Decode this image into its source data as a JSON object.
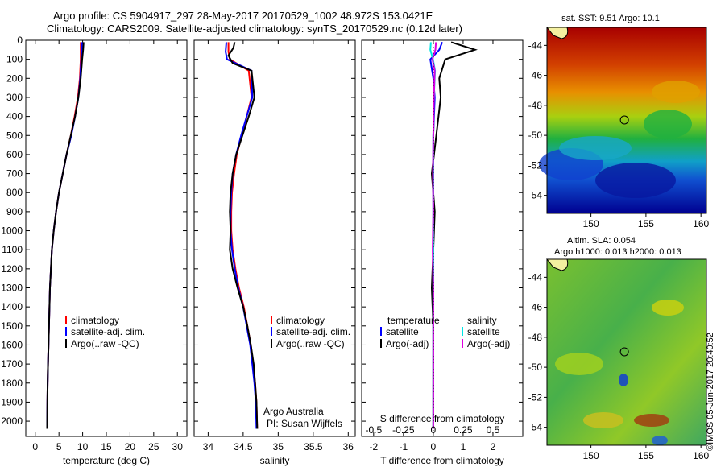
{
  "header": {
    "line1": "Argo profile: CS 5904917_297 28-May-2017 20170529_1002 48.972S 153.0421E",
    "line2": "Climatology: CARS2009. Satellite-adjusted climatology: synTS_20170529.nc (0.12d later)"
  },
  "colors": {
    "climatology": "#ff0000",
    "satellite": "#0000ff",
    "argo": "#000000",
    "sal_satellite": "#00e5e5",
    "sal_argo": "#e000e0"
  },
  "chart_data": [
    {
      "type": "line",
      "id": "temperature",
      "xlabel": "temperature (deg C)",
      "ylabel": "",
      "xlim": [
        -2,
        32
      ],
      "ylim": [
        2080,
        0
      ],
      "xticks": [
        0,
        5,
        10,
        15,
        20,
        25,
        30
      ],
      "yticks": [
        0,
        100,
        200,
        300,
        400,
        500,
        600,
        700,
        800,
        900,
        1000,
        1100,
        1200,
        1300,
        1400,
        1500,
        1600,
        1700,
        1800,
        1900,
        2000
      ],
      "legend": [
        "climatology",
        "satellite-adj. clim.",
        "Argo(..raw -QC)"
      ],
      "series": [
        {
          "name": "climatology",
          "color": "#ff0000",
          "x": [
            9.6,
            9.6,
            9.6,
            9.4,
            9.0,
            8.3,
            7.5,
            6.6,
            5.8,
            5.0,
            4.4,
            3.9,
            3.5,
            3.3,
            3.1,
            3.0,
            2.9,
            2.8,
            2.7,
            2.6,
            2.55,
            2.5
          ],
          "y": [
            10,
            50,
            100,
            200,
            300,
            400,
            500,
            600,
            700,
            800,
            900,
            1000,
            1100,
            1200,
            1300,
            1400,
            1500,
            1600,
            1700,
            1800,
            1900,
            2040
          ]
        },
        {
          "name": "satellite-adj. clim.",
          "color": "#0000ff",
          "x": [
            9.9,
            9.8,
            9.7,
            9.5,
            9.1,
            8.4,
            7.6,
            6.6,
            5.8,
            5.0,
            4.4,
            3.9,
            3.5,
            3.3,
            3.1,
            3.0,
            2.9,
            2.8,
            2.7,
            2.6,
            2.55,
            2.5
          ],
          "y": [
            10,
            50,
            100,
            200,
            300,
            400,
            500,
            600,
            700,
            800,
            900,
            1000,
            1100,
            1200,
            1300,
            1400,
            1500,
            1600,
            1700,
            1800,
            1900,
            2040
          ]
        },
        {
          "name": "Argo(..raw -QC)",
          "color": "#000000",
          "x": [
            10.2,
            10.1,
            9.9,
            9.6,
            9.1,
            8.4,
            7.5,
            6.6,
            5.8,
            5.0,
            4.4,
            3.9,
            3.5,
            3.3,
            3.1,
            3.0,
            2.9,
            2.8,
            2.7,
            2.6,
            2.55,
            2.5
          ],
          "y": [
            10,
            50,
            100,
            200,
            300,
            400,
            500,
            600,
            700,
            800,
            900,
            1000,
            1100,
            1200,
            1300,
            1400,
            1500,
            1600,
            1700,
            1800,
            1900,
            2040
          ]
        }
      ]
    },
    {
      "type": "line",
      "id": "salinity",
      "xlabel": "salinity",
      "ylabel": "",
      "xlim": [
        33.8,
        36.1
      ],
      "ylim": [
        2080,
        0
      ],
      "xticks": [
        34,
        34.5,
        35,
        35.5,
        36
      ],
      "yticks": [],
      "legend": [
        "climatology",
        "satellite-adj. clim.",
        "Argo(..raw -QC)"
      ],
      "annotation": [
        "Argo Australia",
        "PI: Susan Wijffels"
      ],
      "series": [
        {
          "name": "climatology",
          "color": "#ff0000",
          "x": [
            34.29,
            34.29,
            34.31,
            34.58,
            34.62,
            34.55,
            34.48,
            34.41,
            34.37,
            34.34,
            34.33,
            34.33,
            34.35,
            34.39,
            34.44,
            34.51,
            34.56,
            34.61,
            34.64,
            34.67,
            34.69,
            34.7
          ],
          "y": [
            10,
            60,
            100,
            160,
            300,
            400,
            500,
            600,
            700,
            800,
            900,
            1000,
            1100,
            1200,
            1300,
            1400,
            1500,
            1600,
            1700,
            1800,
            1900,
            2040
          ]
        },
        {
          "name": "satellite-adj. clim.",
          "color": "#0000ff",
          "x": [
            34.26,
            34.25,
            34.27,
            34.62,
            34.63,
            34.55,
            34.47,
            34.4,
            34.35,
            34.33,
            34.32,
            34.32,
            34.34,
            34.38,
            34.43,
            34.5,
            34.55,
            34.6,
            34.63,
            34.66,
            34.68,
            34.69
          ],
          "y": [
            10,
            60,
            100,
            160,
            300,
            400,
            500,
            600,
            700,
            800,
            900,
            1000,
            1100,
            1200,
            1300,
            1400,
            1500,
            1600,
            1700,
            1800,
            1900,
            2040
          ]
        },
        {
          "name": "Argo(..raw -QC)",
          "color": "#000000",
          "x": [
            34.38,
            34.36,
            34.29,
            34.35,
            34.62,
            34.66,
            34.58,
            34.49,
            34.4,
            34.35,
            34.32,
            34.31,
            34.32,
            34.31,
            34.35,
            34.42,
            34.5,
            34.56,
            34.61,
            34.65,
            34.67,
            34.69,
            34.7
          ],
          "y": [
            10,
            40,
            80,
            120,
            160,
            300,
            400,
            500,
            600,
            700,
            800,
            900,
            1000,
            1100,
            1200,
            1300,
            1400,
            1500,
            1600,
            1700,
            1800,
            1900,
            2040
          ]
        }
      ]
    },
    {
      "type": "line",
      "id": "difference",
      "xlabel": "T difference from climatology",
      "xlabel_top": "S difference from climatology",
      "xlim": [
        -2.4,
        3.0
      ],
      "xlim_top": [
        -0.6,
        0.75
      ],
      "ylim": [
        2080,
        0
      ],
      "xticks": [
        -2,
        -1,
        0,
        1,
        2
      ],
      "xticks_top": [
        "-0.5",
        "-0.25",
        "0",
        "0.25",
        "0.5"
      ],
      "legend_left_title": "temperature",
      "legend_right_title": "salinity",
      "legend": [
        "satellite",
        "Argo(-adj)",
        "satellite",
        "Argo(-adj)"
      ],
      "series": [
        {
          "name": "T satellite",
          "color": "#0000ff",
          "x": [
            0.3,
            0.2,
            -0.1,
            0.0,
            0.05,
            0.0,
            0.0,
            0.0,
            0.0,
            0.0,
            0.0,
            0.0,
            0.0,
            0.0,
            0.0,
            0.0
          ],
          "y": [
            10,
            50,
            100,
            200,
            300,
            500,
            700,
            900,
            1100,
            1300,
            1500,
            1600,
            1700,
            1800,
            1900,
            2040
          ]
        },
        {
          "name": "T Argo(-adj)",
          "color": "#000000",
          "x": [
            0.6,
            1.4,
            0.4,
            0.2,
            0.25,
            0.1,
            -0.05,
            0.05,
            0.0,
            -0.05,
            0.0,
            0.0,
            0.0,
            0.0,
            0.0,
            0.0
          ],
          "y": [
            10,
            50,
            100,
            200,
            300,
            500,
            700,
            900,
            1100,
            1300,
            1500,
            1600,
            1700,
            1800,
            1900,
            2040
          ]
        },
        {
          "name": "S satellite",
          "color": "#00e5e5",
          "x": [
            -0.08,
            -0.1,
            -0.01,
            0.06,
            0.02,
            0.0,
            0.0,
            0.0,
            0.0,
            0.0,
            0.0,
            0.0,
            0.0,
            0.0,
            0.0,
            0.0
          ],
          "y": [
            10,
            50,
            100,
            160,
            300,
            500,
            700,
            900,
            1100,
            1300,
            1500,
            1600,
            1700,
            1800,
            1900,
            2040
          ]
        },
        {
          "name": "S Argo(-adj)",
          "color": "#e000e0",
          "x": [
            0.09,
            0.07,
            -0.03,
            0.05,
            0.02,
            0.0,
            -0.01,
            0.0,
            -0.02,
            0.0,
            0.0,
            0.0,
            0.0,
            0.0,
            0.0,
            0.0
          ],
          "y": [
            10,
            50,
            100,
            160,
            300,
            500,
            700,
            900,
            1100,
            1300,
            1500,
            1600,
            1700,
            1800,
            1900,
            2040
          ]
        }
      ]
    },
    {
      "type": "heatmap",
      "id": "sst_map",
      "title": "sat. SST: 9.51  Argo: 10.1",
      "xlim": [
        146,
        160.5
      ],
      "ylim": [
        -55.2,
        -42.8
      ],
      "xticks": [
        150,
        155,
        160
      ],
      "yticks": [
        -44,
        -46,
        -48,
        -50,
        -52,
        -54
      ],
      "marker": {
        "lon": 153.04,
        "lat": -48.97
      }
    },
    {
      "type": "heatmap",
      "id": "sla_map",
      "title": "Altim. SLA: 0.054",
      "subtitle": "Argo h1000: 0.013 h2000: 0.013",
      "xlim": [
        146,
        160.5
      ],
      "ylim": [
        -55.2,
        -42.8
      ],
      "xticks": [
        150,
        155,
        160
      ],
      "yticks": [
        -44,
        -46,
        -48,
        -50,
        -52,
        -54
      ],
      "marker": {
        "lon": 153.04,
        "lat": -48.97
      }
    }
  ],
  "stamp": "©IMOS 05-Jun-2017 20:40:52"
}
